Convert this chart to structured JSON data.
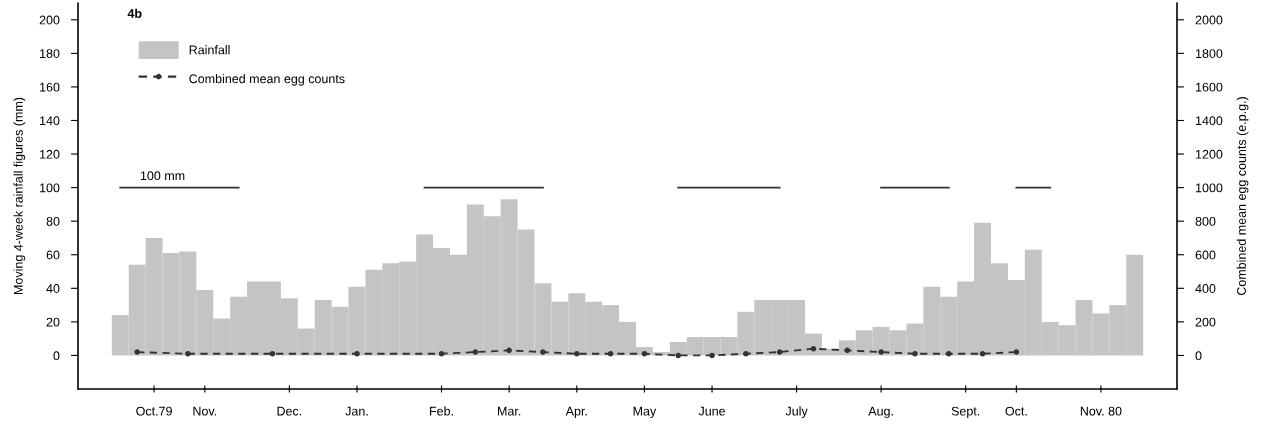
{
  "chart_data": {
    "type": "bar",
    "ylabel": "Moving 4-week rainfall figures (mm)",
    "y2label": "Combined mean egg counts (e.p.g.)",
    "annotations": [
      "4b",
      {
        "text": "100 mm",
        "y": 100
      }
    ],
    "categories": [
      null,
      null,
      "Oct.79",
      null,
      null,
      "Nov.",
      null,
      null,
      null,
      null,
      "Dec.",
      null,
      null,
      null,
      "Jan.",
      null,
      null,
      null,
      null,
      "Feb.",
      null,
      null,
      null,
      "Mar.",
      null,
      null,
      null,
      "Apr.",
      null,
      null,
      null,
      "May",
      null,
      null,
      null,
      "June",
      null,
      null,
      null,
      null,
      "July",
      null,
      null,
      null,
      null,
      "Aug.",
      null,
      null,
      null,
      null,
      "Sept.",
      null,
      null,
      "Oct.",
      null,
      null,
      null,
      null,
      "Nov. 80",
      null,
      null
    ],
    "series": [
      {
        "name": "Rainfall",
        "color": "#c4c4c4",
        "values": [
          24,
          54,
          70,
          61,
          62,
          39,
          22,
          35,
          44,
          44,
          34,
          16,
          33,
          29,
          41,
          51,
          55,
          56,
          72,
          64,
          60,
          90,
          83,
          93,
          75,
          43,
          32,
          37,
          32,
          30,
          20,
          5,
          2,
          8,
          11,
          11,
          11,
          26,
          33,
          33,
          33,
          13,
          4,
          9,
          15,
          17,
          15,
          19,
          41,
          35,
          44,
          79,
          55,
          45,
          63,
          20,
          18,
          33,
          25,
          30,
          60
        ]
      },
      {
        "type": "line",
        "name": "Combined mean egg counts",
        "axis": "y2",
        "color": "#333333",
        "marker": "circle",
        "line_style": "dashed",
        "values": [
          null,
          20,
          null,
          null,
          10,
          null,
          null,
          null,
          null,
          10,
          null,
          null,
          null,
          null,
          10,
          null,
          null,
          null,
          null,
          10,
          null,
          20,
          null,
          30,
          null,
          20,
          null,
          10,
          null,
          10,
          null,
          10,
          null,
          0,
          null,
          0,
          null,
          10,
          null,
          20,
          null,
          40,
          null,
          30,
          null,
          20,
          null,
          10,
          null,
          10,
          null,
          10,
          null,
          20,
          null,
          null,
          null,
          null,
          null,
          null,
          null
        ]
      },
      {
        "type": "line",
        "color": "#333333",
        "line_style": "solid",
        "values": [
          100,
          100,
          100,
          100,
          100,
          100,
          100,
          100,
          null,
          null,
          null,
          null,
          null,
          null,
          null,
          null,
          null,
          null,
          100,
          100,
          100,
          100,
          100,
          100,
          100,
          100,
          null,
          null,
          null,
          null,
          null,
          null,
          null,
          100,
          100,
          100,
          100,
          100,
          100,
          100,
          null,
          null,
          null,
          null,
          null,
          100,
          100,
          100,
          100,
          100,
          null,
          null,
          null,
          100,
          100,
          100,
          null,
          null,
          null,
          null,
          null
        ]
      }
    ],
    "ylim": [
      -20,
      210
    ],
    "yticks": [
      0,
      20,
      40,
      60,
      80,
      100,
      120,
      140,
      160,
      180,
      200
    ],
    "y2lim": [
      -200,
      2100
    ],
    "y2ticks": [
      0,
      200,
      400,
      600,
      800,
      1000,
      1200,
      1400,
      1600,
      1800,
      2000
    ],
    "legend": "top left"
  }
}
